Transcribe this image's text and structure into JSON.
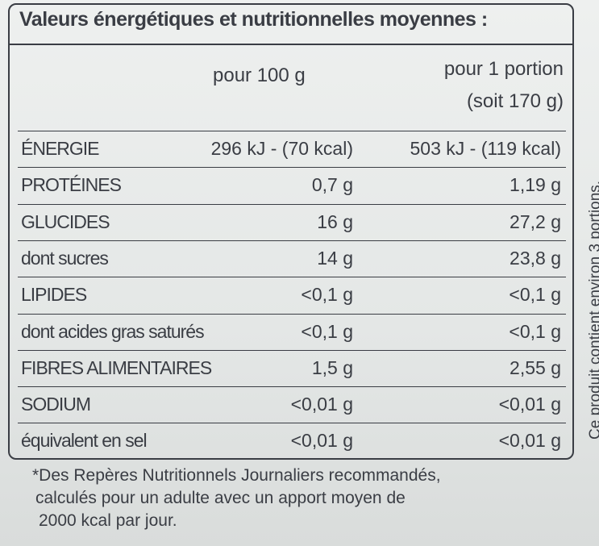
{
  "title": "Valeurs énergétiques et nutritionnelles moyennes :",
  "header": {
    "col1": "pour 100 g",
    "col2": "pour 1 portion",
    "col2_note": "(soit 170 g)"
  },
  "table": {
    "rows": [
      [
        "ÉNERGIE",
        "296 kJ - (70 kcal)",
        "503 kJ - (119 kcal)"
      ],
      [
        "PROTÉINES",
        "0,7 g",
        "1,19 g"
      ],
      [
        "GLUCIDES",
        "16 g",
        "27,2 g"
      ],
      [
        "dont sucres",
        "14 g",
        "23,8 g"
      ],
      [
        "LIPIDES",
        "<0,1 g",
        "<0,1 g"
      ],
      [
        "dont acides gras saturés",
        "<0,1 g",
        "<0,1 g"
      ],
      [
        "FIBRES ALIMENTAIRES",
        "1,5 g",
        "2,55 g"
      ],
      [
        "SODIUM",
        "<0,01 g",
        "<0,01 g"
      ],
      [
        "équivalent en sel",
        "<0,01 g",
        "<0,01 g"
      ]
    ]
  },
  "side_note": "Ce produit contient environ 3 portions.",
  "footnote": [
    "*Des Repères Nutritionnels Journaliers recommandés,",
    "calculés pour un adulte avec un apport moyen de",
    "2000 kcal par jour."
  ]
}
